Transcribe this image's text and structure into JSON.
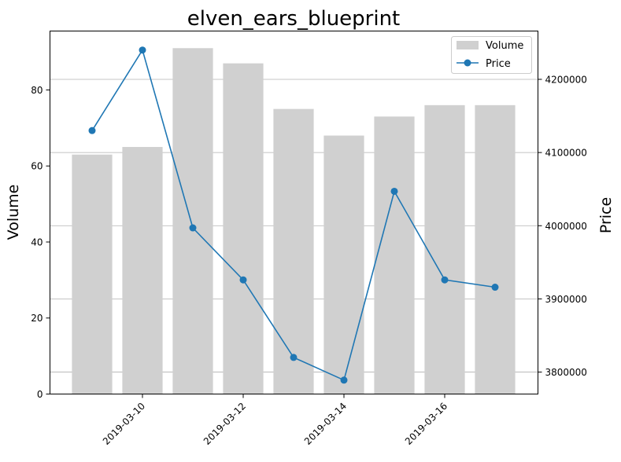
{
  "chart_data": {
    "type": "bar+line",
    "title": "elven_ears_blueprint",
    "x": [
      "2019-03-09",
      "2019-03-10",
      "2019-03-11",
      "2019-03-12",
      "2019-03-13",
      "2019-03-14",
      "2019-03-15",
      "2019-03-16",
      "2019-03-17"
    ],
    "x_tick_labels": [
      "2019-03-10",
      "2019-03-12",
      "2019-03-14",
      "2019-03-16"
    ],
    "series": [
      {
        "name": "Volume",
        "kind": "bar",
        "axis": "left",
        "color": "#d0d0d0",
        "values": [
          63,
          65,
          91,
          87,
          75,
          68,
          73,
          76,
          76
        ]
      },
      {
        "name": "Price",
        "kind": "line",
        "axis": "right",
        "color": "#1f77b4",
        "values": [
          4130000,
          4240000,
          3997000,
          3926000,
          3820000,
          3789000,
          4047000,
          3926000,
          3916000
        ]
      }
    ],
    "ylabel_left": "Volume",
    "ylabel_right": "Price",
    "ylim_left": [
      0,
      95.5
    ],
    "ylim_right": [
      3770000,
      4266000
    ],
    "yticks_left": [
      0,
      20,
      40,
      60,
      80
    ],
    "yticks_right": [
      3800000,
      3900000,
      4000000,
      4100000,
      4200000
    ],
    "grid": "horizontal on right axis",
    "legend_position": "top-right"
  }
}
